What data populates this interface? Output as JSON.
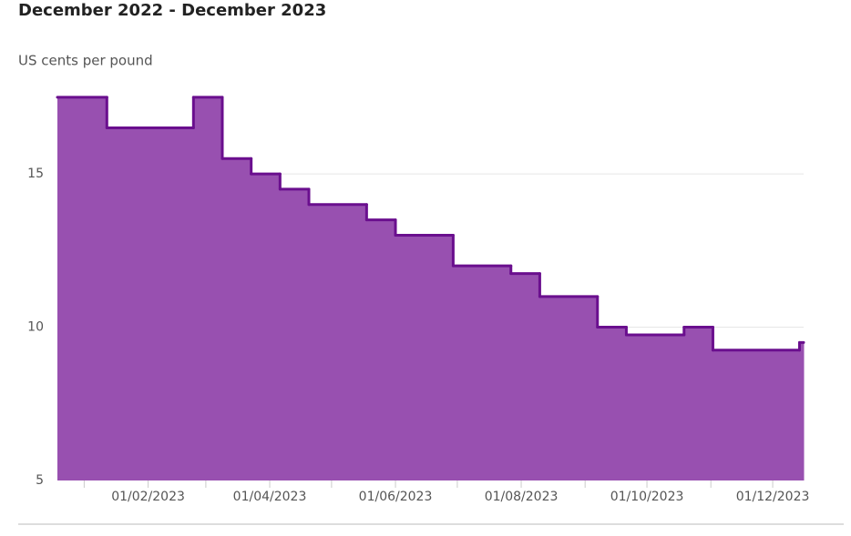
{
  "chart_data": {
    "type": "step-area",
    "title": "December 2022 - December 2023",
    "ylabel": "US cents per pound",
    "x": [
      "19/12/2022",
      "12/01/2023",
      "23/02/2023",
      "09/03/2023",
      "23/03/2023",
      "06/04/2023",
      "20/04/2023",
      "18/05/2023",
      "01/06/2023",
      "29/06/2023",
      "27/07/2023",
      "10/08/2023",
      "07/09/2023",
      "21/09/2023",
      "19/10/2023",
      "02/11/2023",
      "14/12/2023"
    ],
    "values": [
      17.5,
      16.5,
      17.5,
      15.5,
      15,
      14.5,
      14,
      13.5,
      13,
      12,
      11.75,
      11,
      10,
      9.75,
      10,
      9.25,
      9.5
    ],
    "fill_color": "#9850b0",
    "line_color": "#6a0f8e",
    "xlim": [
      "19/12/2022",
      "16/12/2023"
    ],
    "xticks": [
      "01/02/2023",
      "01/04/2023",
      "01/06/2023",
      "01/08/2023",
      "01/10/2023",
      "01/12/2023"
    ],
    "minor_xticks": [
      "01/01/2023",
      "01/02/2023",
      "01/03/2023",
      "01/04/2023",
      "01/05/2023",
      "01/06/2023",
      "01/07/2023",
      "01/08/2023",
      "01/09/2023",
      "01/10/2023",
      "01/11/2023",
      "01/12/2023"
    ],
    "ylim": [
      5,
      18
    ],
    "yticks": [
      5,
      10,
      15
    ],
    "grid": true
  }
}
